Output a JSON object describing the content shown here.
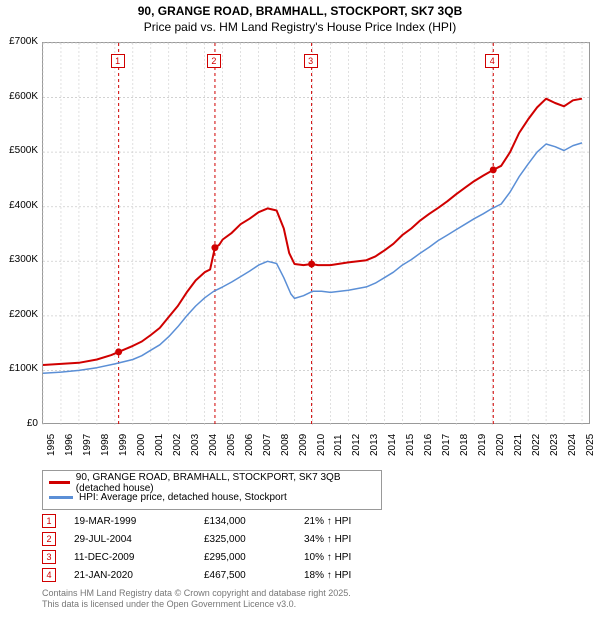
{
  "title": {
    "line1": "90, GRANGE ROAD, BRAMHALL, STOCKPORT, SK7 3QB",
    "line2": "Price paid vs. HM Land Registry's House Price Index (HPI)"
  },
  "chart": {
    "type": "line",
    "background_color": "#ffffff",
    "axis_color": "#999999",
    "grid_color": "#cccccc",
    "marker_box_color": "#d00000",
    "x": {
      "min": 1995,
      "max": 2025.5,
      "ticks": [
        1995,
        1996,
        1997,
        1998,
        1999,
        2000,
        2001,
        2002,
        2003,
        2004,
        2005,
        2006,
        2007,
        2008,
        2009,
        2010,
        2011,
        2012,
        2013,
        2014,
        2015,
        2016,
        2017,
        2018,
        2019,
        2020,
        2021,
        2022,
        2023,
        2024,
        2025
      ]
    },
    "y": {
      "min": 0,
      "max": 700000,
      "ticks": [
        0,
        100000,
        200000,
        300000,
        400000,
        500000,
        600000,
        700000
      ],
      "labels": [
        "£0",
        "£100K",
        "£200K",
        "£300K",
        "£400K",
        "£500K",
        "£600K",
        "£700K"
      ]
    },
    "series": [
      {
        "name": "90, GRANGE ROAD, BRAMHALL, STOCKPORT, SK7 3QB (detached house)",
        "color": "#d00000",
        "width": 2,
        "data": [
          [
            1995,
            110000
          ],
          [
            1996,
            112000
          ],
          [
            1997,
            114000
          ],
          [
            1998,
            120000
          ],
          [
            1998.8,
            128000
          ],
          [
            1999.21,
            134000
          ],
          [
            1999.5,
            138000
          ],
          [
            2000,
            145000
          ],
          [
            2000.5,
            153000
          ],
          [
            2001,
            165000
          ],
          [
            2001.5,
            178000
          ],
          [
            2002,
            198000
          ],
          [
            2002.5,
            218000
          ],
          [
            2003,
            243000
          ],
          [
            2003.5,
            265000
          ],
          [
            2004,
            280000
          ],
          [
            2004.3,
            285000
          ],
          [
            2004.57,
            325000
          ],
          [
            2004.8,
            330000
          ],
          [
            2005,
            340000
          ],
          [
            2005.5,
            352000
          ],
          [
            2006,
            368000
          ],
          [
            2006.5,
            378000
          ],
          [
            2007,
            390000
          ],
          [
            2007.5,
            397000
          ],
          [
            2008,
            393000
          ],
          [
            2008.4,
            360000
          ],
          [
            2008.7,
            315000
          ],
          [
            2009,
            295000
          ],
          [
            2009.5,
            293000
          ],
          [
            2009.95,
            295000
          ],
          [
            2010.3,
            293000
          ],
          [
            2011,
            293000
          ],
          [
            2012,
            298000
          ],
          [
            2013,
            302000
          ],
          [
            2013.5,
            309000
          ],
          [
            2014,
            320000
          ],
          [
            2014.5,
            332000
          ],
          [
            2015,
            348000
          ],
          [
            2015.5,
            360000
          ],
          [
            2016,
            375000
          ],
          [
            2016.5,
            387000
          ],
          [
            2017,
            398000
          ],
          [
            2017.5,
            410000
          ],
          [
            2018,
            423000
          ],
          [
            2018.5,
            435000
          ],
          [
            2019,
            447000
          ],
          [
            2019.5,
            457000
          ],
          [
            2020.06,
            467500
          ],
          [
            2020.5,
            475000
          ],
          [
            2021,
            500000
          ],
          [
            2021.5,
            535000
          ],
          [
            2022,
            560000
          ],
          [
            2022.5,
            582000
          ],
          [
            2023,
            598000
          ],
          [
            2023.5,
            590000
          ],
          [
            2024,
            584000
          ],
          [
            2024.5,
            595000
          ],
          [
            2025,
            598000
          ]
        ],
        "sale_dots": [
          [
            1999.21,
            134000
          ],
          [
            2004.57,
            325000
          ],
          [
            2009.95,
            295000
          ],
          [
            2020.06,
            467500
          ]
        ]
      },
      {
        "name": "HPI: Average price, detached house, Stockport",
        "color": "#5b8fd6",
        "width": 1.5,
        "data": [
          [
            1995,
            95000
          ],
          [
            1996,
            97000
          ],
          [
            1997,
            100000
          ],
          [
            1998,
            105000
          ],
          [
            1999,
            112000
          ],
          [
            2000,
            120000
          ],
          [
            2000.5,
            127000
          ],
          [
            2001,
            137000
          ],
          [
            2001.5,
            147000
          ],
          [
            2002,
            162000
          ],
          [
            2002.5,
            180000
          ],
          [
            2003,
            200000
          ],
          [
            2003.5,
            218000
          ],
          [
            2004,
            233000
          ],
          [
            2004.5,
            245000
          ],
          [
            2005,
            253000
          ],
          [
            2005.5,
            262000
          ],
          [
            2006,
            272000
          ],
          [
            2006.5,
            282000
          ],
          [
            2007,
            293000
          ],
          [
            2007.5,
            300000
          ],
          [
            2008,
            296000
          ],
          [
            2008.4,
            270000
          ],
          [
            2008.8,
            240000
          ],
          [
            2009,
            232000
          ],
          [
            2009.5,
            237000
          ],
          [
            2010,
            245000
          ],
          [
            2010.5,
            245000
          ],
          [
            2011,
            243000
          ],
          [
            2012,
            247000
          ],
          [
            2013,
            253000
          ],
          [
            2013.5,
            260000
          ],
          [
            2014,
            270000
          ],
          [
            2014.5,
            280000
          ],
          [
            2015,
            293000
          ],
          [
            2015.5,
            303000
          ],
          [
            2016,
            315000
          ],
          [
            2016.5,
            326000
          ],
          [
            2017,
            338000
          ],
          [
            2017.5,
            348000
          ],
          [
            2018,
            358000
          ],
          [
            2018.5,
            368000
          ],
          [
            2019,
            378000
          ],
          [
            2019.5,
            387000
          ],
          [
            2020,
            397000
          ],
          [
            2020.5,
            405000
          ],
          [
            2021,
            427000
          ],
          [
            2021.5,
            455000
          ],
          [
            2022,
            478000
          ],
          [
            2022.5,
            500000
          ],
          [
            2023,
            515000
          ],
          [
            2023.5,
            510000
          ],
          [
            2024,
            503000
          ],
          [
            2024.5,
            512000
          ],
          [
            2025,
            517000
          ]
        ]
      }
    ],
    "markers": [
      {
        "idx": 1,
        "x": 1999.21
      },
      {
        "idx": 2,
        "x": 2004.57
      },
      {
        "idx": 3,
        "x": 2009.95
      },
      {
        "idx": 4,
        "x": 2020.06
      }
    ]
  },
  "legend": {
    "items": [
      {
        "color": "#d00000",
        "label": "90, GRANGE ROAD, BRAMHALL, STOCKPORT, SK7 3QB (detached house)"
      },
      {
        "color": "#5b8fd6",
        "label": "HPI: Average price, detached house, Stockport"
      }
    ]
  },
  "sales": [
    {
      "idx": "1",
      "date": "19-MAR-1999",
      "price": "£134,000",
      "pct": "21% ↑ HPI"
    },
    {
      "idx": "2",
      "date": "29-JUL-2004",
      "price": "£325,000",
      "pct": "34% ↑ HPI"
    },
    {
      "idx": "3",
      "date": "11-DEC-2009",
      "price": "£295,000",
      "pct": "10% ↑ HPI"
    },
    {
      "idx": "4",
      "date": "21-JAN-2020",
      "price": "£467,500",
      "pct": "18% ↑ HPI"
    }
  ],
  "footer": {
    "line1": "Contains HM Land Registry data © Crown copyright and database right 2025.",
    "line2": "This data is licensed under the Open Government Licence v3.0."
  }
}
